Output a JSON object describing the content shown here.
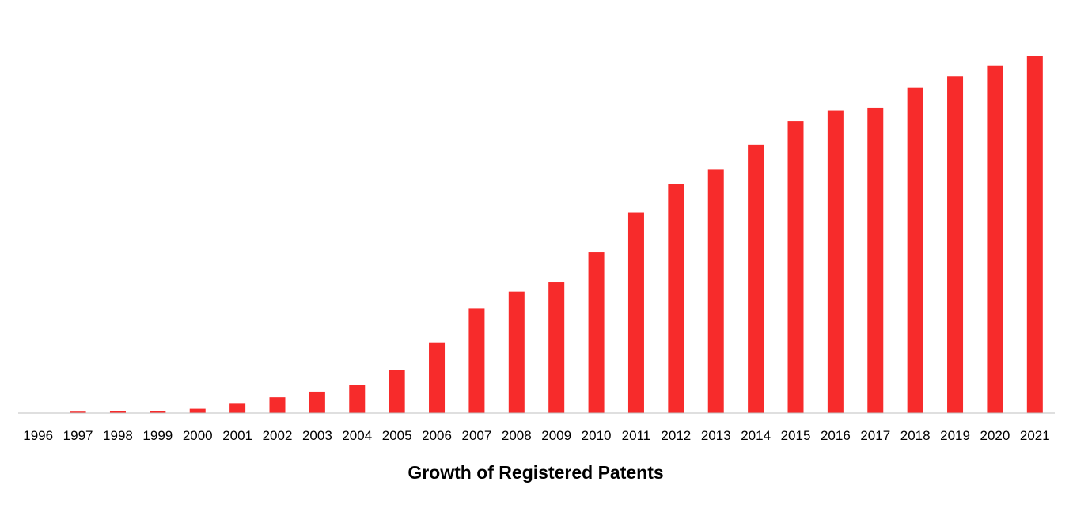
{
  "chart_data": {
    "type": "bar",
    "title": "Growth of Registered Patents",
    "xlabel": "",
    "ylabel": "",
    "categories": [
      "1996",
      "1997",
      "1998",
      "1999",
      "2000",
      "2001",
      "2002",
      "2003",
      "2004",
      "2005",
      "2006",
      "2007",
      "2008",
      "2009",
      "2010",
      "2011",
      "2012",
      "2013",
      "2014",
      "2015",
      "2016",
      "2017",
      "2018",
      "2019",
      "2020",
      "2021"
    ],
    "values": [
      0,
      0.4,
      0.6,
      0.6,
      1.2,
      2.8,
      4.4,
      6.0,
      7.8,
      12.0,
      19.8,
      29.4,
      34.0,
      36.8,
      45.0,
      56.2,
      64.2,
      68.2,
      75.2,
      81.8,
      84.8,
      85.6,
      91.2,
      94.4,
      97.4,
      100
    ],
    "ylim": [
      0,
      100
    ],
    "grid": false,
    "legend": "none",
    "bar_color": "#f72b2b",
    "axis_color": "#bfbfbf"
  }
}
